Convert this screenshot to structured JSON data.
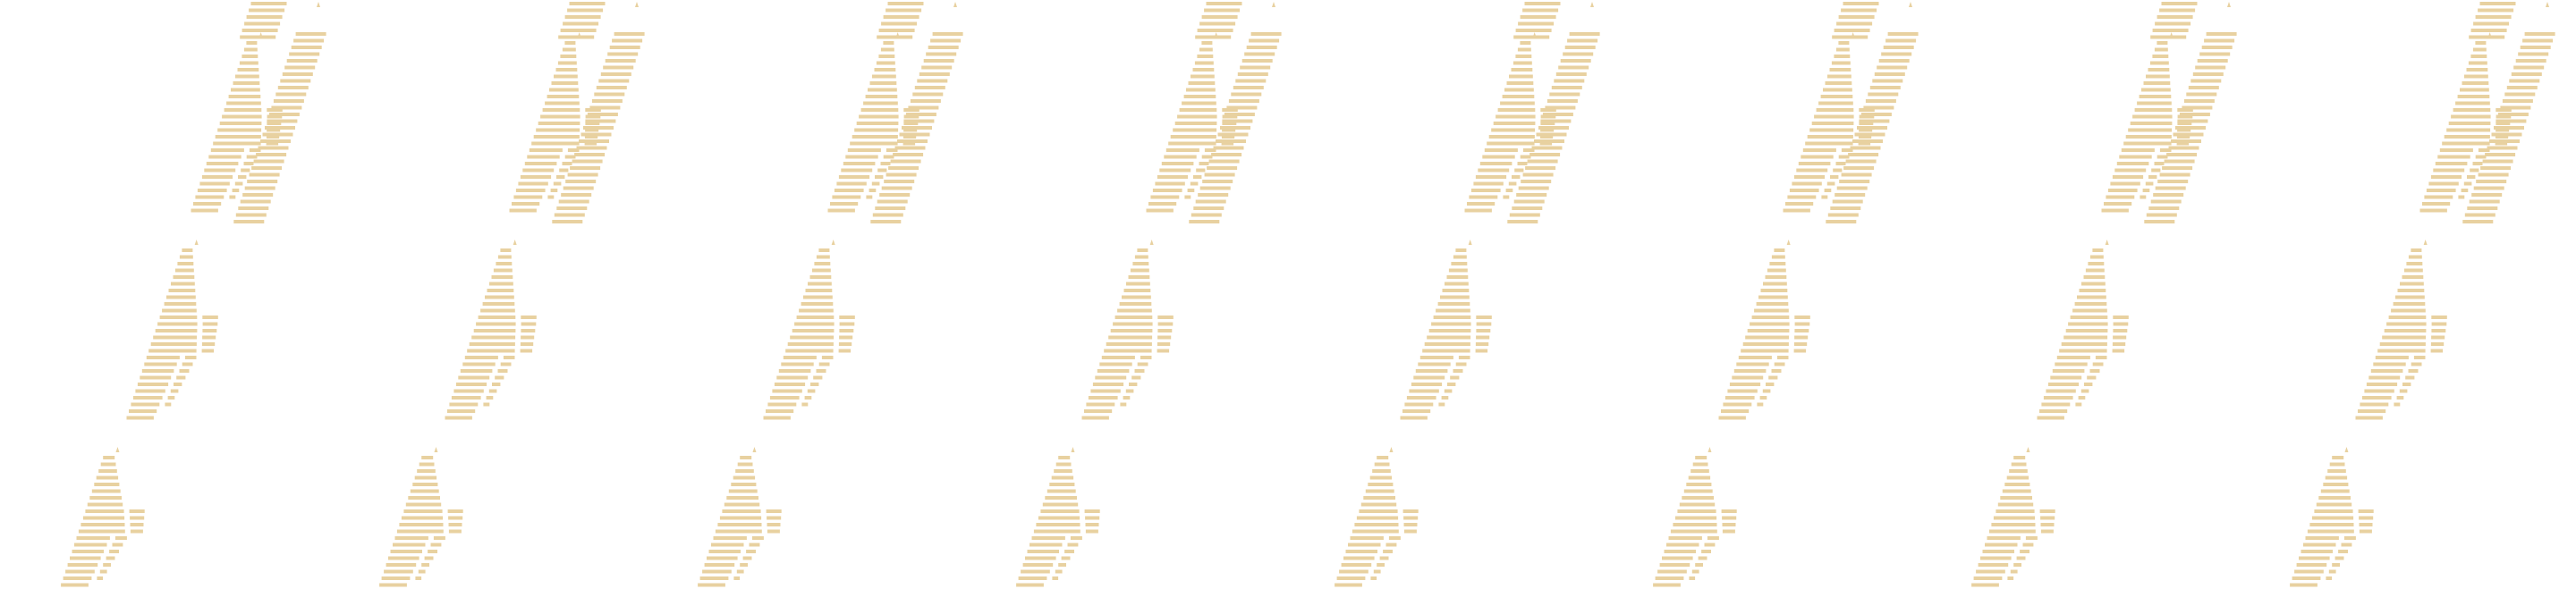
{
  "pattern": {
    "motif": "striped-zigzag-stroke",
    "repeat_count": 8,
    "stroke_color": "#e8d1a0",
    "background_color": "#ffffff"
  }
}
